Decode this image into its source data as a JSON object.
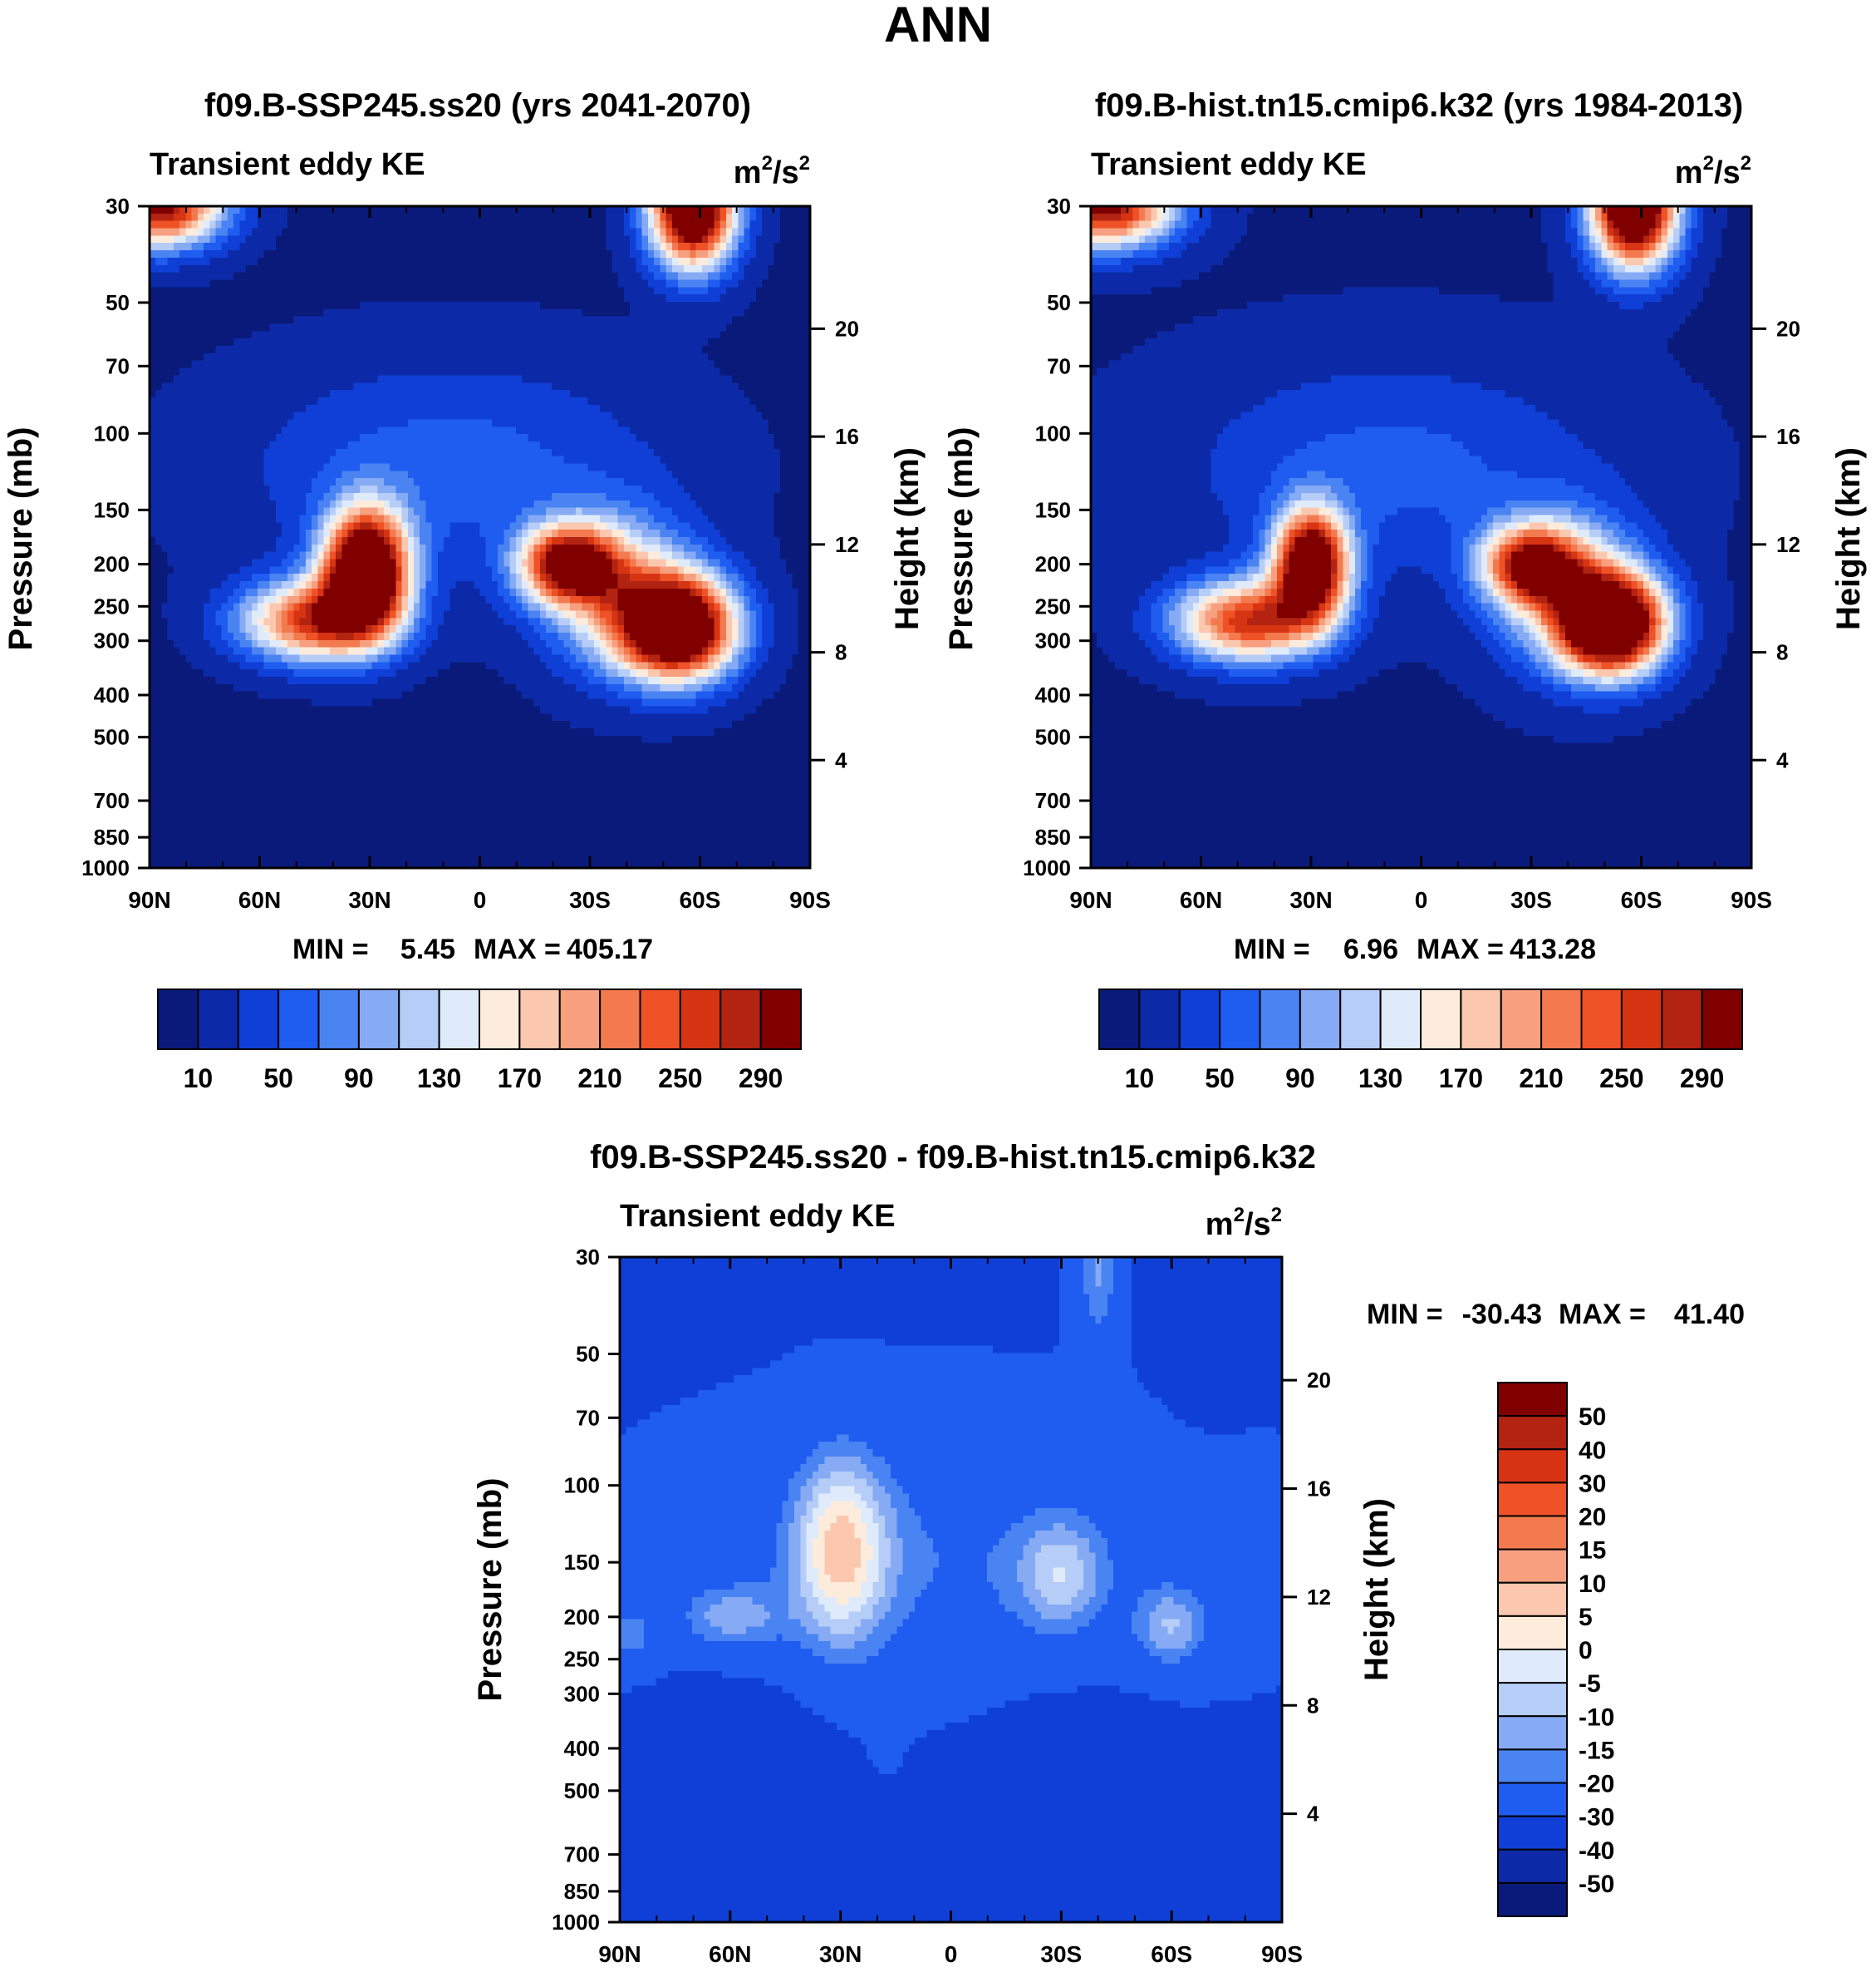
{
  "figure": {
    "title": "ANN"
  },
  "colors": {
    "abs_palette": [
      "#0a1a7a",
      "#0c2aa8",
      "#0f3fd6",
      "#1f5cf0",
      "#4a83f2",
      "#86aaf4",
      "#b6cdf8",
      "#dfebfb",
      "#fdebdc",
      "#fbc8af",
      "#f7a080",
      "#f37a4f",
      "#ef5226",
      "#d63413",
      "#b32312",
      "#800000"
    ],
    "diff_palette": [
      "#0a1a7a",
      "#0c2aa8",
      "#0f3fd6",
      "#1f5cf0",
      "#4a83f2",
      "#86aaf4",
      "#b6cdf8",
      "#dfebfb",
      "#fdebdc",
      "#fbc8af",
      "#f7a080",
      "#f37a4f",
      "#ef5226",
      "#d63413",
      "#b32312",
      "#800000"
    ]
  },
  "chart_data": [
    {
      "type": "heatmap",
      "id": "panel1",
      "title": "f09.B-SSP245.ss20 (yrs 2041-2070)",
      "left_label": "Transient eddy KE",
      "units_base": "m",
      "units_sup1": "2",
      "units_mid": "/s",
      "units_sup2": "2",
      "xlabel": "",
      "ylabel": "Pressure (mb)",
      "y2label": "Height (km)",
      "xlim": [
        90,
        -90
      ],
      "x_ticks": [
        90,
        60,
        30,
        0,
        -30,
        -60,
        -90
      ],
      "x_tick_labels": [
        "90N",
        "60N",
        "30N",
        "0",
        "30S",
        "60S",
        "90S"
      ],
      "y_ticks": [
        30,
        50,
        70,
        100,
        150,
        200,
        250,
        300,
        400,
        500,
        700,
        850,
        1000
      ],
      "y_tick_labels": [
        "30",
        "50",
        "70",
        "100",
        "150",
        "200",
        "250",
        "300",
        "400",
        "500",
        "700",
        "850",
        "1000"
      ],
      "ylim": [
        1000,
        30
      ],
      "y2_ticks": [
        4,
        8,
        12,
        16,
        20
      ],
      "y2_tick_labels": [
        "4",
        "8",
        "12",
        "16",
        "20"
      ],
      "min_label": "MIN =",
      "min_value": "5.45",
      "max_label": "MAX =",
      "max_value": "405.17",
      "field_min": 5.45,
      "field_max": 405.17,
      "levels": [
        10,
        30,
        50,
        70,
        90,
        110,
        130,
        150,
        170,
        190,
        210,
        230,
        250,
        270,
        290
      ],
      "colorbar_labels": [
        "10",
        "50",
        "90",
        "130",
        "170",
        "210",
        "250",
        "290"
      ],
      "colorbar_label_levels": [
        10,
        50,
        90,
        130,
        170,
        210,
        250,
        290
      ],
      "features": [
        {
          "lat": 31,
          "p": 205,
          "amp": 400,
          "wlat": 8,
          "wlog": 0.22
        },
        {
          "lat": 45,
          "p": 270,
          "amp": 250,
          "wlat": 14,
          "wlog": 0.15
        },
        {
          "lat": -24,
          "p": 200,
          "amp": 275,
          "wlat": 9,
          "wlog": 0.14
        },
        {
          "lat": -54,
          "p": 280,
          "amp": 385,
          "wlat": 11,
          "wlog": 0.19
        },
        {
          "lat": -37,
          "p": 230,
          "amp": 150,
          "wlat": 14,
          "wlog": 0.28
        },
        {
          "lat": 87,
          "p": 30,
          "amp": 300,
          "wlat": 12,
          "wlog": 0.15
        },
        {
          "lat": -58,
          "p": 30,
          "amp": 400,
          "wlat": 8,
          "wlog": 0.22
        },
        {
          "lat": 8,
          "p": 120,
          "amp": 55,
          "wlat": 40,
          "wlog": 0.4
        }
      ]
    },
    {
      "type": "heatmap",
      "id": "panel2",
      "title": "f09.B-hist.tn15.cmip6.k32 (yrs 1984-2013)",
      "left_label": "Transient eddy KE",
      "units_base": "m",
      "units_sup1": "2",
      "units_mid": "/s",
      "units_sup2": "2",
      "xlabel": "",
      "ylabel": "Pressure (mb)",
      "y2label": "Height (km)",
      "xlim": [
        90,
        -90
      ],
      "x_ticks": [
        90,
        60,
        30,
        0,
        -30,
        -60,
        -90
      ],
      "x_tick_labels": [
        "90N",
        "60N",
        "30N",
        "0",
        "30S",
        "60S",
        "90S"
      ],
      "y_ticks": [
        30,
        50,
        70,
        100,
        150,
        200,
        250,
        300,
        400,
        500,
        700,
        850,
        1000
      ],
      "y_tick_labels": [
        "30",
        "50",
        "70",
        "100",
        "150",
        "200",
        "250",
        "300",
        "400",
        "500",
        "700",
        "850",
        "1000"
      ],
      "ylim": [
        1000,
        30
      ],
      "y2_ticks": [
        4,
        8,
        12,
        16,
        20
      ],
      "y2_tick_labels": [
        "4",
        "8",
        "12",
        "16",
        "20"
      ],
      "min_label": "MIN =",
      "min_value": "6.96",
      "max_label": "MAX =",
      "max_value": "413.28",
      "field_min": 6.96,
      "field_max": 413.28,
      "levels": [
        10,
        30,
        50,
        70,
        90,
        110,
        130,
        150,
        170,
        190,
        210,
        230,
        250,
        270,
        290
      ],
      "colorbar_labels": [
        "10",
        "50",
        "90",
        "130",
        "170",
        "210",
        "250",
        "290"
      ],
      "colorbar_label_levels": [
        10,
        50,
        90,
        130,
        170,
        210,
        250,
        290
      ],
      "features": [
        {
          "lat": 30,
          "p": 200,
          "amp": 360,
          "wlat": 7,
          "wlog": 0.2
        },
        {
          "lat": 47,
          "p": 270,
          "amp": 255,
          "wlat": 14,
          "wlog": 0.15
        },
        {
          "lat": -30,
          "p": 200,
          "amp": 250,
          "wlat": 9,
          "wlog": 0.14
        },
        {
          "lat": -52,
          "p": 275,
          "amp": 395,
          "wlat": 10,
          "wlog": 0.18
        },
        {
          "lat": -40,
          "p": 230,
          "amp": 140,
          "wlat": 14,
          "wlog": 0.28
        },
        {
          "lat": 86,
          "p": 30,
          "amp": 300,
          "wlat": 13,
          "wlog": 0.15
        },
        {
          "lat": -58,
          "p": 30,
          "amp": 410,
          "wlat": 8,
          "wlog": 0.22
        },
        {
          "lat": 8,
          "p": 120,
          "amp": 50,
          "wlat": 40,
          "wlog": 0.4
        }
      ]
    },
    {
      "type": "heatmap",
      "id": "panel3",
      "title": "f09.B-SSP245.ss20 - f09.B-hist.tn15.cmip6.k32",
      "left_label": "Transient eddy KE",
      "units_base": "m",
      "units_sup1": "2",
      "units_mid": "/s",
      "units_sup2": "2",
      "xlabel": "",
      "ylabel": "Pressure (mb)",
      "y2label": "Height (km)",
      "xlim": [
        90,
        -90
      ],
      "x_ticks": [
        90,
        60,
        30,
        0,
        -30,
        -60,
        -90
      ],
      "x_tick_labels": [
        "90N",
        "60N",
        "30N",
        "0",
        "30S",
        "60S",
        "90S"
      ],
      "y_ticks": [
        30,
        50,
        70,
        100,
        150,
        200,
        250,
        300,
        400,
        500,
        700,
        850,
        1000
      ],
      "y_tick_labels": [
        "30",
        "50",
        "70",
        "100",
        "150",
        "200",
        "250",
        "300",
        "400",
        "500",
        "700",
        "850",
        "1000"
      ],
      "ylim": [
        1000,
        30
      ],
      "y2_ticks": [
        4,
        8,
        12,
        16,
        20
      ],
      "y2_tick_labels": [
        "4",
        "8",
        "12",
        "16",
        "20"
      ],
      "min_label": "MIN =",
      "min_value": "-30.43",
      "max_label": "MAX =",
      "max_value": "41.40",
      "field_min": -30.43,
      "field_max": 41.4,
      "levels": [
        -50,
        -40,
        -30,
        -20,
        -15,
        -10,
        -5,
        0,
        5,
        10,
        15,
        20,
        30,
        40,
        50
      ],
      "colorbar_labels": [
        "50",
        "40",
        "30",
        "20",
        "15",
        "10",
        "5",
        "0",
        "-5",
        "-10",
        "-15",
        "-20",
        "-30",
        "-40",
        "-50"
      ],
      "colorbar_label_levels": [
        50,
        40,
        30,
        20,
        15,
        10,
        5,
        0,
        -5,
        -10,
        -15,
        -20,
        -30,
        -40,
        -50
      ],
      "features": [
        {
          "lat": 30,
          "p": 140,
          "amp": 32,
          "wlat": 9,
          "wlog": 0.35
        },
        {
          "lat": -30,
          "p": 160,
          "amp": 18,
          "wlat": 8,
          "wlog": 0.2
        },
        {
          "lat": -60,
          "p": 210,
          "amp": 18,
          "wlat": 7,
          "wlog": 0.15
        },
        {
          "lat": 60,
          "p": 200,
          "amp": 16,
          "wlat": 10,
          "wlog": 0.12
        },
        {
          "lat": 87,
          "p": 220,
          "amp": 12,
          "wlat": 5,
          "wlog": 0.12
        },
        {
          "lat": -40,
          "p": 32,
          "amp": 16,
          "wlat": 4,
          "wlog": 0.3
        },
        {
          "lat": 0,
          "p": 150,
          "amp": 10,
          "wlat": 45,
          "wlog": 0.45
        },
        {
          "lat": -70,
          "p": 32,
          "amp": -30,
          "wlat": 7,
          "wlog": 0.3
        },
        {
          "lat": 75,
          "p": 32,
          "amp": -10,
          "wlat": 5,
          "wlog": 0.2
        },
        {
          "lat": 60,
          "p": 430,
          "amp": -9,
          "wlat": 15,
          "wlog": 0.25
        },
        {
          "lat": -35,
          "p": 420,
          "amp": -10,
          "wlat": 15,
          "wlog": 0.2
        },
        {
          "lat": 30,
          "p": 700,
          "amp": -2,
          "wlat": 40,
          "wlog": 0.5
        },
        {
          "lat": -40,
          "p": 800,
          "amp": -3,
          "wlat": 30,
          "wlog": 0.4
        },
        {
          "lat": -78,
          "p": 550,
          "amp": -4,
          "wlat": 8,
          "wlog": 0.2
        },
        {
          "lat": 18,
          "p": 600,
          "amp": 2,
          "wlat": 6,
          "wlog": 0.5
        }
      ]
    }
  ]
}
